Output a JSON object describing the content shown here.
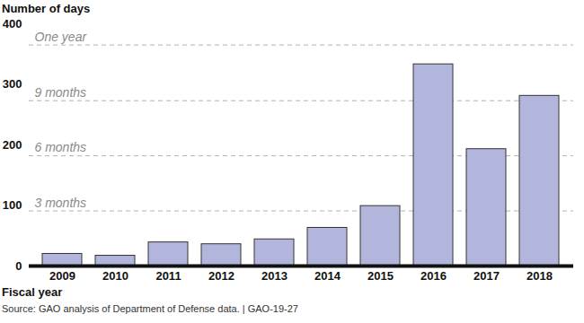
{
  "chart_data": {
    "type": "bar",
    "title": "Number of days",
    "x_label": "Fiscal year",
    "source": "Source: GAO analysis of Department of Defense data.  |  GAO-19-27",
    "categories": [
      "2009",
      "2010",
      "2011",
      "2012",
      "2013",
      "2014",
      "2015",
      "2016",
      "2017",
      "2018"
    ],
    "values": [
      20,
      17,
      39,
      36,
      44,
      63,
      99,
      333,
      193,
      281
    ],
    "color": "#b3b6dc",
    "ylim": [
      0,
      400
    ],
    "yticks": [
      0,
      100,
      200,
      300,
      400
    ],
    "reference_lines": [
      {
        "value": 365,
        "label": "One year"
      },
      {
        "value": 273,
        "label": "9 months"
      },
      {
        "value": 182,
        "label": "6 months"
      },
      {
        "value": 91,
        "label": "3 months"
      }
    ]
  }
}
